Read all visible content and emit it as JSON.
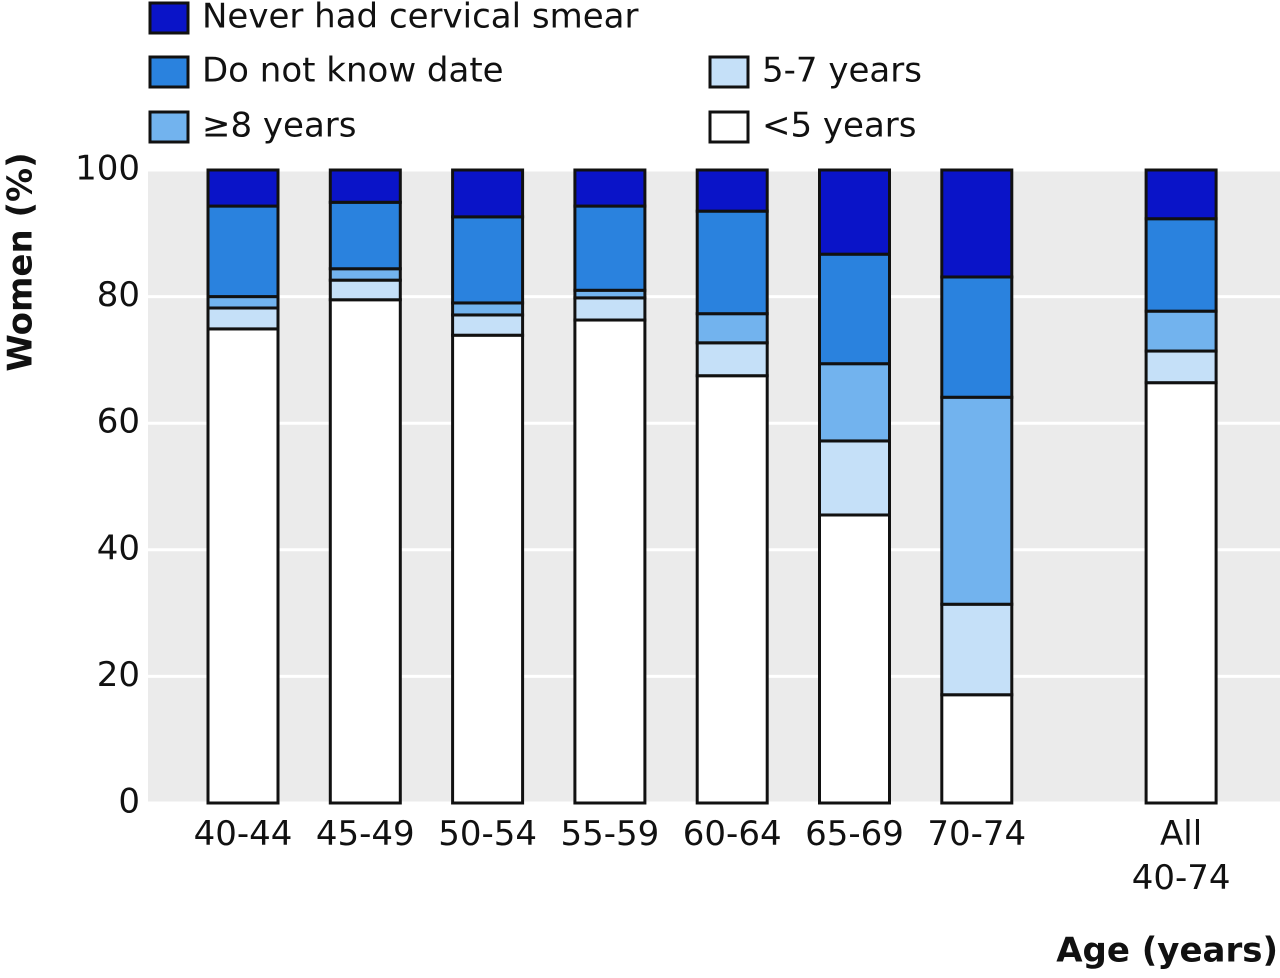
{
  "chart_data": {
    "type": "stacked_bar",
    "categories": [
      "40-44",
      "45-49",
      "50-54",
      "55-59",
      "60-64",
      "65-69",
      "70-74",
      "All 40-74"
    ],
    "series": [
      {
        "name": "<5 years",
        "color": "#ffffff",
        "values": [
          74.9,
          79.5,
          73.9,
          76.3,
          67.5,
          45.5,
          17.1,
          66.4
        ]
      },
      {
        "name": "5-7 years",
        "color": "#c5e0f8",
        "values": [
          3.3,
          3.1,
          3.2,
          3.5,
          5.2,
          11.7,
          14.3,
          5.0
        ]
      },
      {
        "name": "≥8 years",
        "color": "#72b3ee",
        "values": [
          1.8,
          1.8,
          1.9,
          1.2,
          4.6,
          12.2,
          32.7,
          6.3
        ]
      },
      {
        "name": "Do not know date",
        "color": "#2a82de",
        "values": [
          14.3,
          10.5,
          13.6,
          13.3,
          16.2,
          17.3,
          19.0,
          14.6
        ]
      },
      {
        "name": "Never had cervical smear",
        "color": "#0a14c8",
        "values": [
          5.7,
          5.1,
          7.4,
          5.7,
          6.5,
          13.3,
          16.9,
          7.7
        ]
      }
    ],
    "y_label": "Women (%)",
    "x_label": "Age (years)",
    "ylim": [
      0,
      100
    ],
    "yticks": [
      0,
      20,
      40,
      60,
      80,
      100
    ],
    "grid": true
  }
}
